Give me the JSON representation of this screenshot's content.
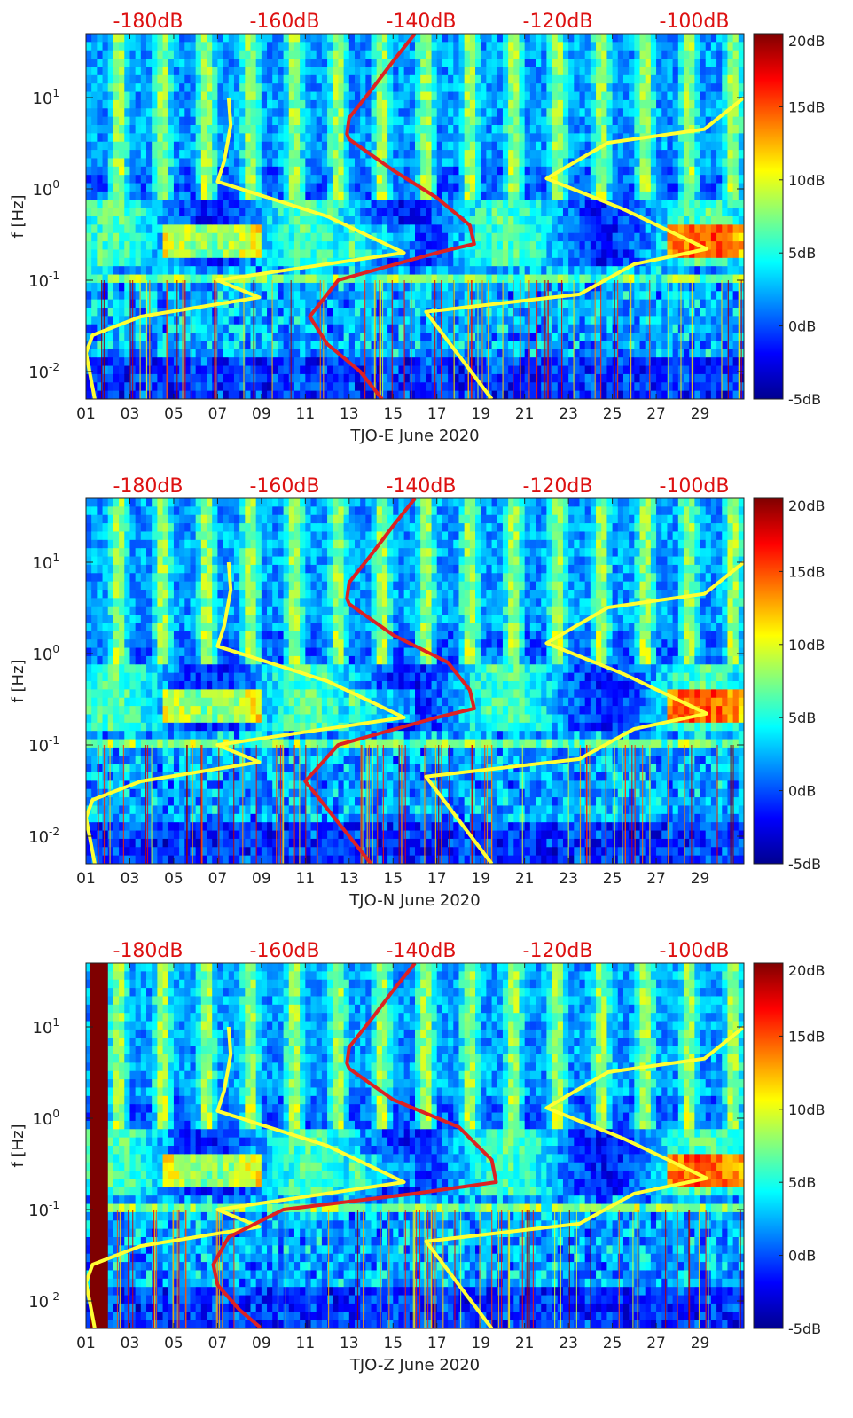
{
  "figure": {
    "colorscale": [
      "#00008f",
      "#0000ff",
      "#0080ff",
      "#00ffff",
      "#80ff80",
      "#ffff00",
      "#ff8000",
      "#ff0000",
      "#800000"
    ],
    "line_colors": {
      "psd_model": "#ffff33",
      "noise_model": "#dd2222"
    },
    "label_color": "#dd1111"
  },
  "chart_data": [
    {
      "type": "heatmap",
      "title": "",
      "xlabel": "TJO-E June 2020",
      "ylabel": "f [Hz]",
      "x_ticks": [
        "01",
        "03",
        "05",
        "07",
        "09",
        "11",
        "13",
        "15",
        "17",
        "19",
        "21",
        "23",
        "25",
        "27",
        "29"
      ],
      "x_tick_values": [
        1,
        3,
        5,
        7,
        9,
        11,
        13,
        15,
        17,
        19,
        21,
        23,
        25,
        27,
        29
      ],
      "xlim": [
        1,
        31
      ],
      "y_scale": "log",
      "ylim": [
        0.005,
        50
      ],
      "y_ticks": [
        {
          "base": "10",
          "exp": "1",
          "value": 10
        },
        {
          "base": "10",
          "exp": "0",
          "value": 1
        },
        {
          "base": "10",
          "exp": "-1",
          "value": 0.1
        },
        {
          "base": "10",
          "exp": "-2",
          "value": 0.01
        }
      ],
      "top_labels": [
        "-180dB",
        "-160dB",
        "-140dB",
        "-120dB",
        "-100dB"
      ],
      "colorbar": {
        "range": [
          -5,
          20
        ],
        "ticks": [
          "20dB",
          "15dB",
          "10dB",
          "5dB",
          "0dB",
          "-5dB"
        ],
        "tick_values": [
          20,
          15,
          10,
          5,
          0,
          -5
        ]
      },
      "series": [
        {
          "name": "left yellow curve",
          "color": "yellow",
          "points": [
            [
              7.5,
              10
            ],
            [
              7.6,
              5
            ],
            [
              7.3,
              2
            ],
            [
              7.0,
              1.2
            ],
            [
              12,
              0.5
            ],
            [
              15.5,
              0.2
            ],
            [
              7,
              0.1
            ],
            [
              8.9,
              0.065
            ],
            [
              3.5,
              0.04
            ],
            [
              1.3,
              0.025
            ],
            [
              1.0,
              0.016
            ],
            [
              1.4,
              0.005
            ]
          ]
        },
        {
          "name": "right yellow curve",
          "color": "yellow",
          "points": [
            [
              31,
              10
            ],
            [
              29.2,
              4.5
            ],
            [
              24.8,
              3.2
            ],
            [
              22,
              1.3
            ],
            [
              25.5,
              0.6
            ],
            [
              29.3,
              0.22
            ],
            [
              26,
              0.15
            ],
            [
              23.5,
              0.07
            ],
            [
              16.5,
              0.045
            ],
            [
              19.5,
              0.005
            ]
          ]
        },
        {
          "name": "red curve",
          "color": "red",
          "points": [
            [
              16,
              50
            ],
            [
              15,
              25
            ],
            [
              14,
              12
            ],
            [
              13,
              6
            ],
            [
              12.9,
              4
            ],
            [
              13,
              3.5
            ],
            [
              15,
              1.6
            ],
            [
              17,
              0.8
            ],
            [
              18.5,
              0.4
            ],
            [
              18.7,
              0.25
            ],
            [
              17,
              0.2
            ],
            [
              12.5,
              0.1
            ],
            [
              11.2,
              0.04
            ],
            [
              12,
              0.02
            ],
            [
              13.5,
              0.01
            ],
            [
              14.5,
              0.005
            ]
          ]
        }
      ]
    },
    {
      "type": "heatmap",
      "title": "",
      "xlabel": "TJO-N June 2020",
      "ylabel": "f [Hz]",
      "x_ticks": [
        "01",
        "03",
        "05",
        "07",
        "09",
        "11",
        "13",
        "15",
        "17",
        "19",
        "21",
        "23",
        "25",
        "27",
        "29"
      ],
      "x_tick_values": [
        1,
        3,
        5,
        7,
        9,
        11,
        13,
        15,
        17,
        19,
        21,
        23,
        25,
        27,
        29
      ],
      "xlim": [
        1,
        31
      ],
      "y_scale": "log",
      "ylim": [
        0.005,
        50
      ],
      "y_ticks": [
        {
          "base": "10",
          "exp": "1",
          "value": 10
        },
        {
          "base": "10",
          "exp": "0",
          "value": 1
        },
        {
          "base": "10",
          "exp": "-1",
          "value": 0.1
        },
        {
          "base": "10",
          "exp": "-2",
          "value": 0.01
        }
      ],
      "top_labels": [
        "-180dB",
        "-160dB",
        "-140dB",
        "-120dB",
        "-100dB"
      ],
      "colorbar": {
        "range": [
          -5,
          20
        ],
        "ticks": [
          "20dB",
          "15dB",
          "10dB",
          "5dB",
          "0dB",
          "-5dB"
        ],
        "tick_values": [
          20,
          15,
          10,
          5,
          0,
          -5
        ]
      },
      "series": [
        {
          "name": "left yellow curve",
          "color": "yellow",
          "points": [
            [
              7.5,
              10
            ],
            [
              7.6,
              5
            ],
            [
              7.3,
              2
            ],
            [
              7.0,
              1.2
            ],
            [
              12,
              0.5
            ],
            [
              15.5,
              0.2
            ],
            [
              7,
              0.1
            ],
            [
              8.9,
              0.065
            ],
            [
              3.5,
              0.04
            ],
            [
              1.3,
              0.025
            ],
            [
              1.0,
              0.016
            ],
            [
              1.4,
              0.005
            ]
          ]
        },
        {
          "name": "right yellow curve",
          "color": "yellow",
          "points": [
            [
              31,
              10
            ],
            [
              29.2,
              4.5
            ],
            [
              24.8,
              3.2
            ],
            [
              22,
              1.3
            ],
            [
              25.5,
              0.6
            ],
            [
              29.3,
              0.22
            ],
            [
              26,
              0.15
            ],
            [
              23.5,
              0.07
            ],
            [
              16.5,
              0.045
            ],
            [
              19.5,
              0.005
            ]
          ]
        },
        {
          "name": "red curve",
          "color": "red",
          "points": [
            [
              16,
              50
            ],
            [
              15,
              25
            ],
            [
              14,
              12
            ],
            [
              13,
              6
            ],
            [
              12.9,
              4
            ],
            [
              13,
              3.5
            ],
            [
              15,
              1.6
            ],
            [
              17.5,
              0.8
            ],
            [
              18.5,
              0.4
            ],
            [
              18.7,
              0.25
            ],
            [
              17,
              0.2
            ],
            [
              12.5,
              0.1
            ],
            [
              11.0,
              0.04
            ],
            [
              12,
              0.02
            ],
            [
              13,
              0.01
            ],
            [
              14,
              0.005
            ]
          ]
        }
      ]
    },
    {
      "type": "heatmap",
      "title": "",
      "xlabel": "TJO-Z June 2020",
      "ylabel": "f [Hz]",
      "x_ticks": [
        "01",
        "03",
        "05",
        "07",
        "09",
        "11",
        "13",
        "15",
        "17",
        "19",
        "21",
        "23",
        "25",
        "27",
        "29"
      ],
      "x_tick_values": [
        1,
        3,
        5,
        7,
        9,
        11,
        13,
        15,
        17,
        19,
        21,
        23,
        25,
        27,
        29
      ],
      "xlim": [
        1,
        31
      ],
      "y_scale": "log",
      "ylim": [
        0.005,
        50
      ],
      "y_ticks": [
        {
          "base": "10",
          "exp": "1",
          "value": 10
        },
        {
          "base": "10",
          "exp": "0",
          "value": 1
        },
        {
          "base": "10",
          "exp": "-1",
          "value": 0.1
        },
        {
          "base": "10",
          "exp": "-2",
          "value": 0.01
        }
      ],
      "top_labels": [
        "-180dB",
        "-160dB",
        "-140dB",
        "-120dB",
        "-100dB"
      ],
      "colorbar": {
        "range": [
          -5,
          20
        ],
        "ticks": [
          "20dB",
          "15dB",
          "10dB",
          "5dB",
          "0dB",
          "-5dB"
        ],
        "tick_values": [
          20,
          15,
          10,
          5,
          0,
          -5
        ]
      },
      "series": [
        {
          "name": "left yellow curve",
          "color": "yellow",
          "points": [
            [
              7.5,
              10
            ],
            [
              7.6,
              5
            ],
            [
              7.3,
              2
            ],
            [
              7.0,
              1.2
            ],
            [
              12,
              0.5
            ],
            [
              15.5,
              0.2
            ],
            [
              7,
              0.1
            ],
            [
              8.9,
              0.065
            ],
            [
              3.5,
              0.04
            ],
            [
              1.3,
              0.025
            ],
            [
              1.0,
              0.016
            ],
            [
              1.4,
              0.005
            ]
          ]
        },
        {
          "name": "right yellow curve",
          "color": "yellow",
          "points": [
            [
              31,
              10
            ],
            [
              29.2,
              4.5
            ],
            [
              24.8,
              3.2
            ],
            [
              22,
              1.3
            ],
            [
              25.5,
              0.6
            ],
            [
              29.3,
              0.22
            ],
            [
              26,
              0.15
            ],
            [
              23.5,
              0.07
            ],
            [
              16.5,
              0.045
            ],
            [
              19.5,
              0.005
            ]
          ]
        },
        {
          "name": "red curve",
          "color": "red",
          "points": [
            [
              16,
              50
            ],
            [
              15,
              25
            ],
            [
              14,
              12
            ],
            [
              13,
              6
            ],
            [
              12.9,
              4
            ],
            [
              13,
              3.5
            ],
            [
              15,
              1.6
            ],
            [
              18,
              0.8
            ],
            [
              19.5,
              0.35
            ],
            [
              19.7,
              0.2
            ],
            [
              16,
              0.15
            ],
            [
              10,
              0.1
            ],
            [
              7.5,
              0.05
            ],
            [
              6.8,
              0.025
            ],
            [
              7,
              0.015
            ],
            [
              8,
              0.008
            ],
            [
              9,
              0.005
            ]
          ]
        }
      ]
    }
  ]
}
